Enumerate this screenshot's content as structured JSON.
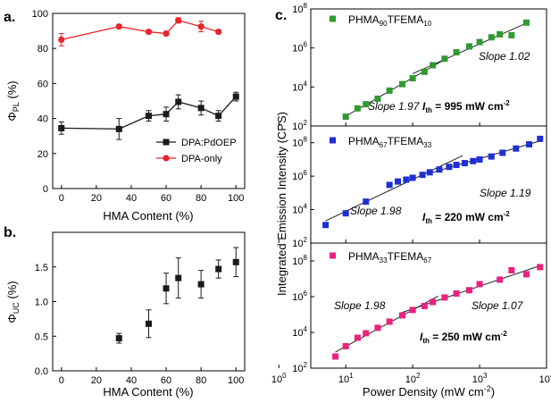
{
  "chart_data": [
    {
      "panel_label": "a.",
      "type": "line",
      "xlabel": "HMA Content (%)",
      "ylabel": "Φ",
      "ylabel_sub": "PL",
      "ylabel_unit": " (%)",
      "xlim": [
        -5,
        105
      ],
      "ylim": [
        0,
        100
      ],
      "xticks": [
        "0",
        "20",
        "40",
        "60",
        "80",
        "100"
      ],
      "yticks": [
        "0",
        "20",
        "40",
        "60",
        "80",
        "100"
      ],
      "legend_position": "bottom-right",
      "series": [
        {
          "name": "DPA:PdOEP",
          "color": "#1a1a1a",
          "marker": "square",
          "x": [
            0,
            33,
            50,
            60,
            67,
            80,
            90,
            100
          ],
          "y": [
            34.5,
            34,
            41.5,
            42.5,
            49.5,
            46,
            41.5,
            52.5
          ],
          "err": [
            3.5,
            6,
            3,
            4,
            4,
            4,
            3,
            2.5
          ]
        },
        {
          "name": "DPA-only",
          "color": "#e8232a",
          "marker": "circle",
          "x": [
            0,
            33,
            50,
            60,
            67,
            80,
            90
          ],
          "y": [
            85,
            92.5,
            89.5,
            88.5,
            96,
            92.5,
            89.5
          ],
          "err": [
            3.5,
            0,
            1,
            1,
            1.5,
            3,
            1
          ]
        }
      ]
    },
    {
      "panel_label": "b.",
      "type": "scatter",
      "xlabel": "HMA Content (%)",
      "ylabel": "Φ",
      "ylabel_sub": "UC",
      "ylabel_unit": " (%)",
      "xlim": [
        -5,
        105
      ],
      "ylim": [
        0,
        2.0
      ],
      "xticks": [
        "0",
        "20",
        "40",
        "60",
        "80",
        "100"
      ],
      "yticks": [
        "0.0",
        "0.5",
        "1.0",
        "1.5"
      ],
      "series": [
        {
          "color": "#1a1a1a",
          "marker": "square",
          "x": [
            33,
            50,
            60,
            67,
            80,
            90,
            100
          ],
          "y": [
            0.47,
            0.68,
            1.19,
            1.34,
            1.25,
            1.47,
            1.57
          ],
          "err": [
            0.07,
            0.2,
            0.22,
            0.29,
            0.2,
            0.13,
            0.21
          ]
        }
      ]
    },
    {
      "panel_label": "c.",
      "type": "scatter",
      "xlabel": "Power Density (mW cm",
      "xlabel_sup": "-2",
      "xlabel_end": ")",
      "ylabel": "Integrated Emission Intensity (CPS)",
      "log_x": true,
      "log_y": true,
      "xlim": [
        3,
        10000
      ],
      "xticks": [
        "10",
        "10",
        "10",
        "10"
      ],
      "xtick_exps": [
        "0",
        "1",
        "2",
        "3"
      ],
      "xticks_last": "10",
      "xticks_last_exp": "4",
      "subplots": [
        {
          "legend_name": "PHMA",
          "legend_sub1": "90",
          "legend_mid": "TFEMA",
          "legend_sub2": "10",
          "color": "#2e9a30",
          "marker": "square",
          "ylim": [
            100,
            100000000
          ],
          "yticks": [
            "10",
            "10",
            "10",
            "10"
          ],
          "ytick_exps": [
            "2",
            "4",
            "6",
            "8"
          ],
          "x": [
            10,
            15,
            20,
            30,
            45,
            70,
            100,
            150,
            200,
            300,
            450,
            700,
            1000,
            1500,
            2000,
            3000,
            5000
          ],
          "y": [
            300,
            800,
            1300,
            2500,
            6500,
            14000,
            28000,
            60000,
            130000,
            280000,
            600000,
            1200000,
            2000000,
            3500000,
            5000000,
            4500000,
            20000000
          ],
          "slope_labels": [
            "Slope 1.97",
            "Slope 1.02"
          ],
          "threshold_label": "I",
          "threshold_sub": "th",
          "threshold_value": " = 995 mW cm",
          "threshold_sup": "-2"
        },
        {
          "legend_name": "PHMA",
          "legend_sub1": "67",
          "legend_mid": "TFEMA",
          "legend_sub2": "33",
          "color": "#1f2fd4",
          "marker": "square",
          "ylim": [
            100,
            1000000000
          ],
          "yticks": [
            "10",
            "10",
            "10",
            "10"
          ],
          "ytick_exps": [
            "2",
            "4",
            "6",
            "8"
          ],
          "x": [
            5,
            10,
            20,
            45,
            60,
            80,
            100,
            140,
            180,
            250,
            350,
            450,
            600,
            800,
            1000,
            1500,
            2200,
            3500,
            5500,
            8000
          ],
          "y": [
            1200,
            6000,
            30000,
            300000,
            480000,
            620000,
            800000,
            1200000,
            1700000,
            2500000,
            3600000,
            4700000,
            6000000,
            8000000,
            10000000,
            15000000,
            25000000,
            45000000,
            80000000,
            170000000
          ],
          "slope_labels": [
            "Slope 1.98",
            "Slope 1.19"
          ],
          "threshold_label": "I",
          "threshold_sub": "th",
          "threshold_value": " = 220 mW cm",
          "threshold_sup": "-2"
        },
        {
          "legend_name": "PHMA",
          "legend_sub1": "33",
          "legend_mid": "TFEMA",
          "legend_sub2": "67",
          "color": "#e8227e",
          "marker": "square",
          "ylim": [
            100,
            1000000000
          ],
          "yticks": [
            "10",
            "10",
            "10",
            "10"
          ],
          "ytick_exps": [
            "2",
            "4",
            "6",
            "8"
          ],
          "x": [
            7,
            10,
            15,
            20,
            30,
            45,
            70,
            100,
            150,
            200,
            300,
            450,
            700,
            1000,
            2000,
            3000,
            5000,
            8000
          ],
          "y": [
            450,
            1700,
            5000,
            9000,
            18000,
            40000,
            90000,
            180000,
            300000,
            500000,
            900000,
            1500000,
            2300000,
            5000000,
            9000000,
            30000000,
            18000000,
            45000000
          ],
          "slope_labels": [
            "Slope 1.98",
            "Slope 1.07"
          ],
          "threshold_label": "I",
          "threshold_sub": "th",
          "threshold_value": " = 250 mW cm",
          "threshold_sup": "-2"
        }
      ]
    }
  ]
}
